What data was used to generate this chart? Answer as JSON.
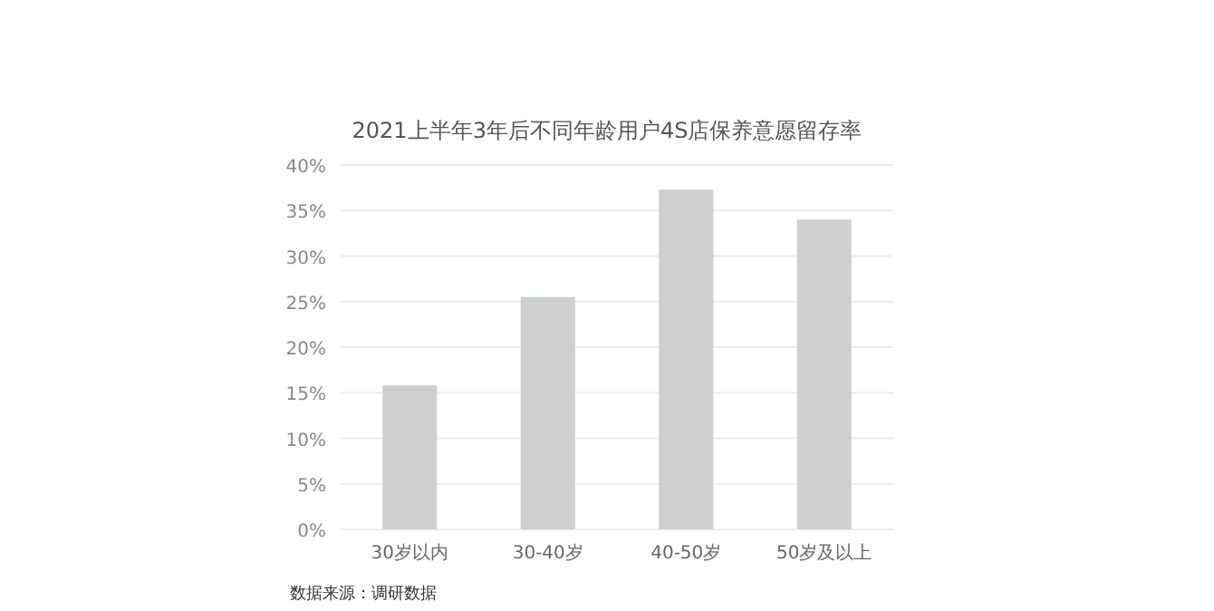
{
  "chart_data": {
    "type": "bar",
    "title": "2021上半年3年后不同年龄用户4S店保养意愿留存率",
    "categories": [
      "30岁以内",
      "30-40岁",
      "40-50岁",
      "50岁及以上"
    ],
    "values": [
      15.8,
      25.5,
      37.3,
      34.0
    ],
    "color": "#cdcfd1",
    "ylim": [
      0,
      40
    ],
    "yticks": [
      {
        "value": 0,
        "label": "0%"
      },
      {
        "value": 5,
        "label": "5%"
      },
      {
        "value": 10,
        "label": "10%"
      },
      {
        "value": 15,
        "label": "15%"
      },
      {
        "value": 20,
        "label": "20%"
      },
      {
        "value": 25,
        "label": "25%"
      },
      {
        "value": 30,
        "label": "30%"
      },
      {
        "value": 35,
        "label": "35%"
      },
      {
        "value": 40,
        "label": "40%"
      }
    ],
    "grid": "y",
    "annotations": [
      "数据来源：调研数据"
    ]
  }
}
